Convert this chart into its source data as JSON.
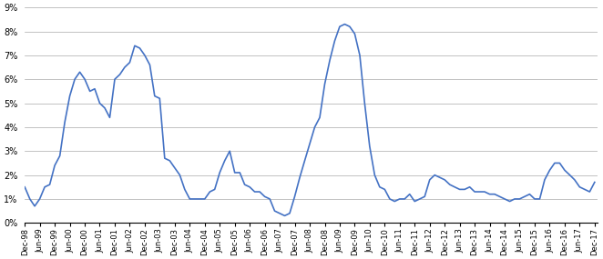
{
  "line_color": "#4472c4",
  "line_width": 1.2,
  "background_color": "#ffffff",
  "grid_color": "#aaaaaa",
  "ylim": [
    0,
    0.09
  ],
  "yticks": [
    0.0,
    0.01,
    0.02,
    0.03,
    0.04,
    0.05,
    0.06,
    0.07,
    0.08,
    0.09
  ],
  "ytick_labels": [
    "0%",
    "1%",
    "2%",
    "3%",
    "4%",
    "5%",
    "6%",
    "7%",
    "8%",
    "9%"
  ],
  "dates": [
    "1998-12-01",
    "1999-02-01",
    "1999-04-01",
    "1999-06-01",
    "1999-08-01",
    "1999-10-01",
    "1999-12-01",
    "2000-02-01",
    "2000-04-01",
    "2000-06-01",
    "2000-08-01",
    "2000-10-01",
    "2000-12-01",
    "2001-02-01",
    "2001-04-01",
    "2001-06-01",
    "2001-08-01",
    "2001-10-01",
    "2001-12-01",
    "2002-02-01",
    "2002-04-01",
    "2002-06-01",
    "2002-08-01",
    "2002-10-01",
    "2002-12-01",
    "2003-02-01",
    "2003-04-01",
    "2003-06-01",
    "2003-08-01",
    "2003-10-01",
    "2003-12-01",
    "2004-02-01",
    "2004-04-01",
    "2004-06-01",
    "2004-08-01",
    "2004-10-01",
    "2004-12-01",
    "2005-02-01",
    "2005-04-01",
    "2005-06-01",
    "2005-08-01",
    "2005-10-01",
    "2005-12-01",
    "2006-02-01",
    "2006-04-01",
    "2006-06-01",
    "2006-08-01",
    "2006-10-01",
    "2006-12-01",
    "2007-02-01",
    "2007-04-01",
    "2007-06-01",
    "2007-08-01",
    "2007-10-01",
    "2007-12-01",
    "2008-02-01",
    "2008-04-01",
    "2008-06-01",
    "2008-08-01",
    "2008-10-01",
    "2008-12-01",
    "2009-02-01",
    "2009-04-01",
    "2009-06-01",
    "2009-08-01",
    "2009-10-01",
    "2009-12-01",
    "2010-02-01",
    "2010-04-01",
    "2010-06-01",
    "2010-08-01",
    "2010-10-01",
    "2010-12-01",
    "2011-02-01",
    "2011-04-01",
    "2011-06-01",
    "2011-08-01",
    "2011-10-01",
    "2011-12-01",
    "2012-02-01",
    "2012-04-01",
    "2012-06-01",
    "2012-08-01",
    "2012-10-01",
    "2012-12-01",
    "2013-02-01",
    "2013-04-01",
    "2013-06-01",
    "2013-08-01",
    "2013-10-01",
    "2013-12-01",
    "2014-02-01",
    "2014-04-01",
    "2014-06-01",
    "2014-08-01",
    "2014-10-01",
    "2014-12-01",
    "2015-02-01",
    "2015-04-01",
    "2015-06-01",
    "2015-08-01",
    "2015-10-01",
    "2015-12-01",
    "2016-02-01",
    "2016-04-01",
    "2016-06-01",
    "2016-08-01",
    "2016-10-01",
    "2016-12-01",
    "2017-02-01",
    "2017-04-01",
    "2017-06-01",
    "2017-08-01",
    "2017-10-01",
    "2017-12-01"
  ],
  "values": [
    0.015,
    0.01,
    0.007,
    0.01,
    0.015,
    0.016,
    0.024,
    0.028,
    0.042,
    0.053,
    0.06,
    0.063,
    0.06,
    0.055,
    0.056,
    0.05,
    0.048,
    0.044,
    0.06,
    0.062,
    0.065,
    0.067,
    0.074,
    0.073,
    0.07,
    0.066,
    0.053,
    0.052,
    0.027,
    0.026,
    0.023,
    0.02,
    0.014,
    0.01,
    0.01,
    0.01,
    0.01,
    0.013,
    0.014,
    0.021,
    0.026,
    0.03,
    0.021,
    0.021,
    0.016,
    0.015,
    0.013,
    0.013,
    0.011,
    0.01,
    0.005,
    0.004,
    0.003,
    0.004,
    0.011,
    0.019,
    0.026,
    0.033,
    0.04,
    0.044,
    0.058,
    0.068,
    0.076,
    0.082,
    0.083,
    0.082,
    0.079,
    0.07,
    0.05,
    0.032,
    0.02,
    0.015,
    0.014,
    0.01,
    0.009,
    0.01,
    0.01,
    0.012,
    0.009,
    0.01,
    0.011,
    0.018,
    0.02,
    0.019,
    0.018,
    0.016,
    0.015,
    0.014,
    0.014,
    0.015,
    0.013,
    0.013,
    0.013,
    0.012,
    0.012,
    0.011,
    0.01,
    0.009,
    0.01,
    0.01,
    0.011,
    0.012,
    0.01,
    0.01,
    0.018,
    0.022,
    0.025,
    0.025,
    0.022,
    0.02,
    0.018,
    0.015,
    0.014,
    0.013,
    0.017
  ],
  "xtick_dates": [
    "1998-12-01",
    "1999-06-01",
    "1999-12-01",
    "2000-06-01",
    "2000-12-01",
    "2001-06-01",
    "2001-12-01",
    "2002-06-01",
    "2002-12-01",
    "2003-06-01",
    "2003-12-01",
    "2004-06-01",
    "2004-12-01",
    "2005-06-01",
    "2005-12-01",
    "2006-06-01",
    "2006-12-01",
    "2007-06-01",
    "2007-12-01",
    "2008-06-01",
    "2008-12-01",
    "2009-06-01",
    "2009-12-01",
    "2010-06-01",
    "2010-12-01",
    "2011-06-01",
    "2011-12-01",
    "2012-06-01",
    "2012-12-01",
    "2013-06-01",
    "2013-12-01",
    "2014-06-01",
    "2014-12-01",
    "2015-06-01",
    "2015-12-01",
    "2016-06-01",
    "2016-12-01",
    "2017-06-01",
    "2017-12-01"
  ],
  "xtick_labels": [
    "Dec-98",
    "Jun-99",
    "Dec-99",
    "Jun-00",
    "Dec-00",
    "Jun-01",
    "Dec-01",
    "Jun-02",
    "Dec-02",
    "Jun-03",
    "Dec-03",
    "Jun-04",
    "Dec-04",
    "Jun-05",
    "Dec-05",
    "Jun-06",
    "Dec-06",
    "Jun-07",
    "Dec-07",
    "Jun-08",
    "Dec-08",
    "Jun-09",
    "Dec-09",
    "Jun-10",
    "Dec-10",
    "Jun-11",
    "Dec-11",
    "Jun-12",
    "Dec-12",
    "Jun-13",
    "Dec-13",
    "Jun-14",
    "Dec-14",
    "Jun-15",
    "Dec-15",
    "Jun-16",
    "Dec-16",
    "Jun-17",
    "Dec-17"
  ]
}
